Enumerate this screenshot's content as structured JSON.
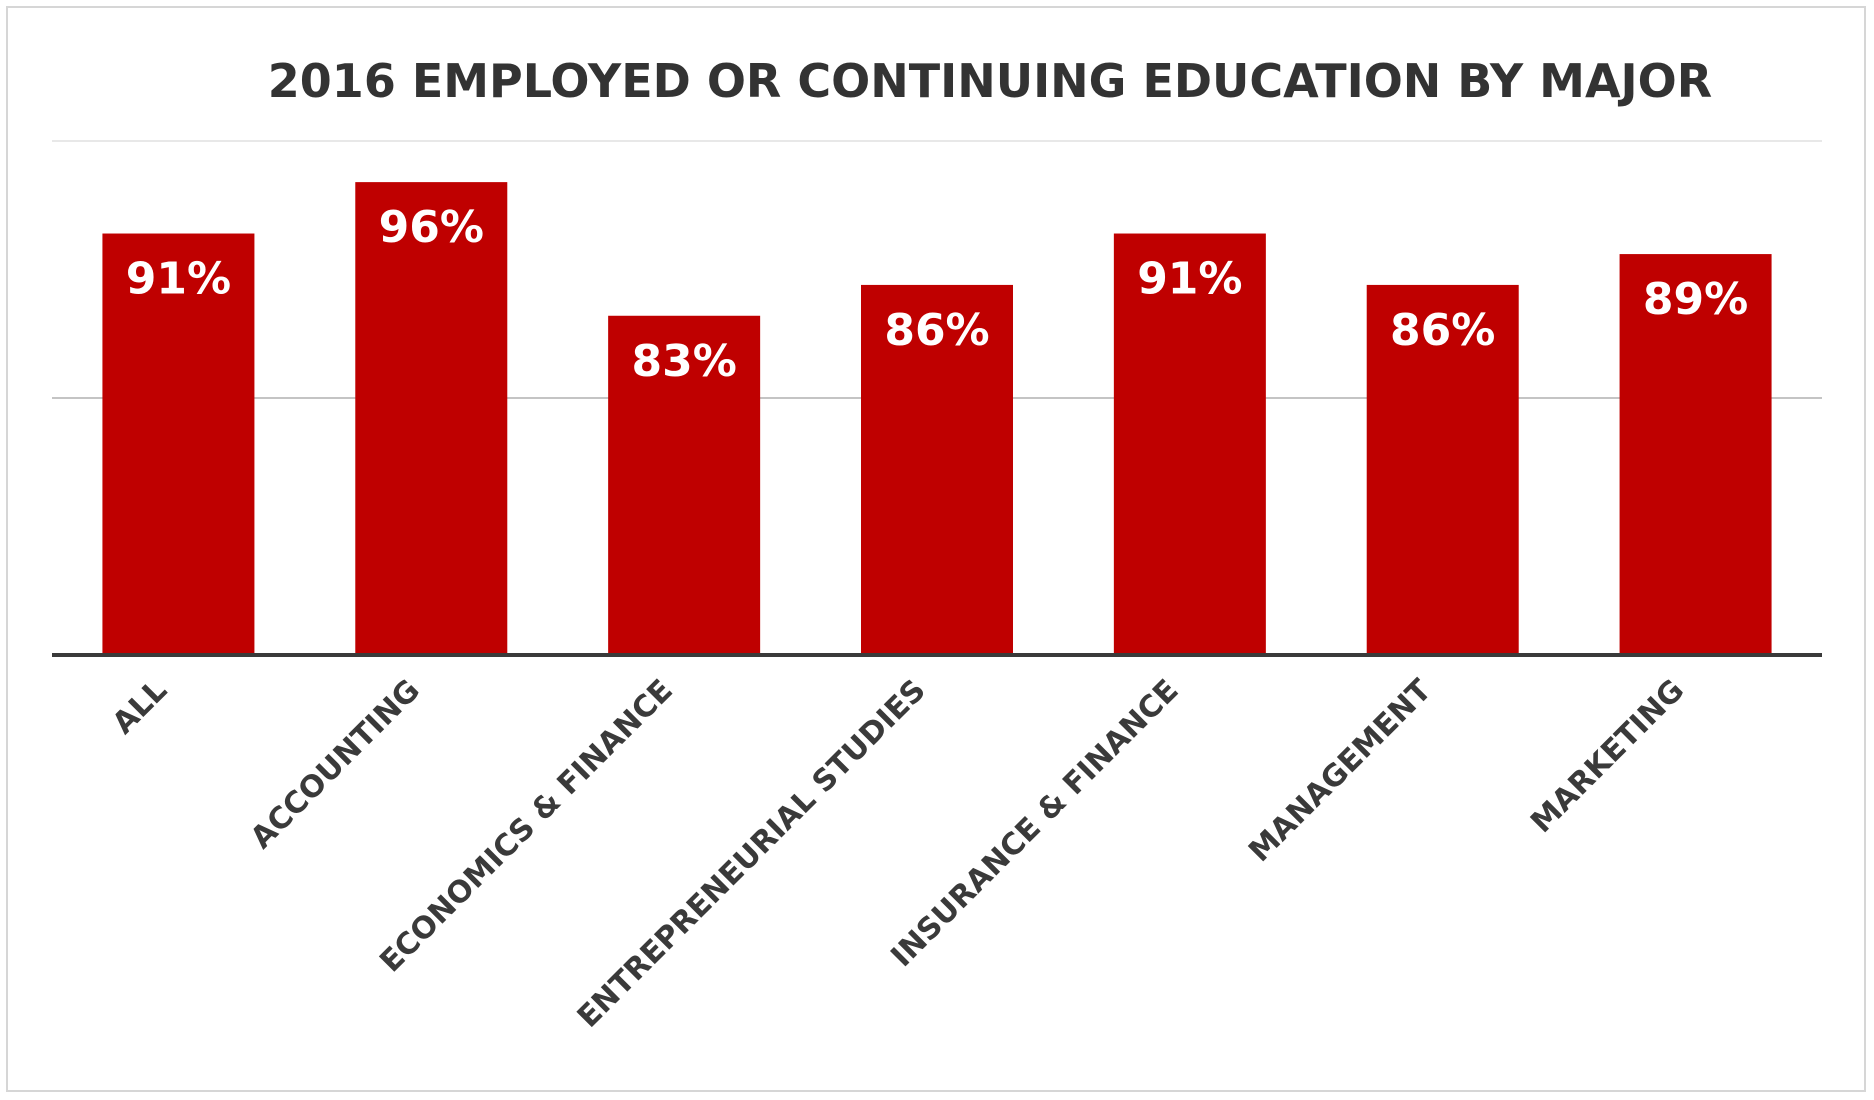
{
  "chart_data": {
    "type": "bar",
    "title": "2016 EMPLOYED OR CONTINUING EDUCATION BY MAJOR",
    "categories": [
      "ALL",
      "ACCOUNTING",
      "ECONOMICS & FINANCE",
      "ENTREPRENEURIAL STUDIES",
      "INSURANCE & FINANCE",
      "MANAGEMENT",
      "MARKETING"
    ],
    "values": [
      91,
      96,
      83,
      86,
      91,
      86,
      89
    ],
    "data_labels": [
      "91%",
      "96%",
      "83%",
      "86%",
      "91%",
      "86%",
      "89%"
    ],
    "ylim": [
      50,
      100
    ],
    "gridlines": [
      75,
      100
    ],
    "grid": true,
    "legend": "none",
    "colors": {
      "bar": "#bf0000",
      "title": "#333333",
      "axis": "#3a3a3a",
      "grid": "#c4c4c4",
      "grid_top": "#e8e8e8",
      "tick_label": "#3a3a3a",
      "bar_label": "#ffffff"
    }
  }
}
